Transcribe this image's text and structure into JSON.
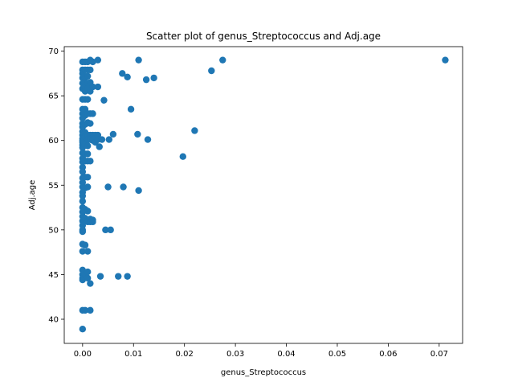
{
  "chart_data": {
    "type": "scatter",
    "title": "Scatter plot of genus_Streptococcus and Adj.age",
    "xlabel": "genus_Streptococcus",
    "ylabel": "Adj.age",
    "xlim": [
      -0.0036,
      0.0746
    ],
    "ylim": [
      37.3,
      70.5
    ],
    "xticks": [
      0.0,
      0.01,
      0.02,
      0.03,
      0.04,
      0.05,
      0.06,
      0.07
    ],
    "xtick_labels": [
      "0.00",
      "0.01",
      "0.02",
      "0.03",
      "0.04",
      "0.05",
      "0.06",
      "0.07"
    ],
    "yticks": [
      40,
      45,
      50,
      55,
      60,
      65,
      70
    ],
    "ytick_labels": [
      "40",
      "45",
      "50",
      "55",
      "60",
      "65",
      "70"
    ],
    "grid": false,
    "legend": "none",
    "color": "#1f77b4",
    "series": [
      {
        "x": [
          0.0,
          0.0,
          0.0,
          0.0,
          0.0,
          0.0,
          0.0,
          0.0,
          0.0,
          0.0,
          0.0,
          0.0,
          0.0,
          0.0,
          0.0,
          0.0,
          0.0,
          0.0,
          0.0,
          0.0,
          0.0,
          0.0,
          0.0,
          0.0,
          0.0,
          0.0,
          0.0,
          0.0,
          0.0,
          0.0,
          0.0,
          0.0,
          0.0,
          0.0,
          0.0,
          0.0,
          0.0,
          0.0,
          0.0,
          0.0,
          0.0,
          0.0,
          0.0,
          0.0,
          0.0,
          0.0005,
          0.0005,
          0.0005,
          0.0005,
          0.0005,
          0.0005,
          0.0005,
          0.0005,
          0.0005,
          0.0005,
          0.0005,
          0.0005,
          0.0005,
          0.0005,
          0.0005,
          0.0005,
          0.0005,
          0.0005,
          0.0005,
          0.0005,
          0.0005,
          0.0005,
          0.001,
          0.001,
          0.001,
          0.001,
          0.001,
          0.001,
          0.001,
          0.001,
          0.001,
          0.001,
          0.001,
          0.001,
          0.001,
          0.001,
          0.001,
          0.001,
          0.001,
          0.001,
          0.001,
          0.001,
          0.0015,
          0.0015,
          0.0015,
          0.0015,
          0.0015,
          0.0015,
          0.0015,
          0.0015,
          0.0015,
          0.0015,
          0.0015,
          0.0015,
          0.0015,
          0.002,
          0.002,
          0.002,
          0.002,
          0.002,
          0.002,
          0.002,
          0.002,
          0.0025,
          0.0025,
          0.0025,
          0.003,
          0.003,
          0.003,
          0.003,
          0.0033,
          0.0035,
          0.0038,
          0.0042,
          0.0045,
          0.005,
          0.0052,
          0.0055,
          0.006,
          0.007,
          0.0078,
          0.008,
          0.0088,
          0.0088,
          0.0095,
          0.0108,
          0.011,
          0.011,
          0.0125,
          0.0128,
          0.014,
          0.0197,
          0.022,
          0.0253,
          0.0275,
          0.0712
        ],
        "y": [
          68.8,
          67.9,
          67.5,
          67.0,
          66.4,
          65.8,
          64.6,
          63.5,
          63.0,
          61.9,
          61.0,
          60.6,
          60.2,
          59.8,
          59.5,
          59.2,
          58.6,
          58.0,
          57.6,
          57.0,
          56.5,
          55.8,
          55.3,
          54.8,
          54.2,
          53.8,
          53.2,
          52.5,
          52.0,
          51.5,
          51.0,
          50.5,
          50.0,
          49.8,
          48.4,
          47.6,
          45.5,
          45.0,
          44.6,
          44.4,
          41.0,
          38.9,
          62.5,
          61.5,
          60.0,
          68.8,
          67.9,
          67.0,
          66.4,
          66.0,
          65.5,
          64.6,
          63.5,
          62.8,
          61.8,
          60.9,
          60.4,
          59.5,
          58.5,
          57.7,
          55.9,
          54.7,
          52.3,
          51.3,
          48.3,
          45.0,
          41.0,
          68.8,
          67.9,
          67.2,
          66.4,
          65.8,
          64.6,
          63.0,
          62.0,
          60.6,
          60.1,
          59.4,
          58.5,
          57.7,
          55.9,
          54.8,
          52.1,
          50.9,
          47.6,
          45.3,
          44.6,
          69.0,
          67.9,
          66.5,
          65.5,
          63.0,
          61.9,
          60.6,
          60.1,
          57.7,
          51.2,
          50.9,
          44.0,
          41.0,
          68.8,
          66.0,
          63.0,
          60.6,
          60.3,
          60.0,
          51.1,
          50.9,
          60.6,
          60.2,
          59.8,
          69.0,
          66.0,
          60.6,
          60.1,
          59.3,
          44.8,
          60.1,
          64.5,
          50.0,
          54.8,
          60.1,
          50.0,
          60.7,
          44.8,
          67.5,
          54.8,
          67.1,
          44.8,
          63.5,
          60.7,
          69.0,
          54.4,
          66.8,
          60.1,
          67.0,
          58.2,
          61.1,
          67.8,
          69.0,
          69.0
        ]
      }
    ]
  }
}
